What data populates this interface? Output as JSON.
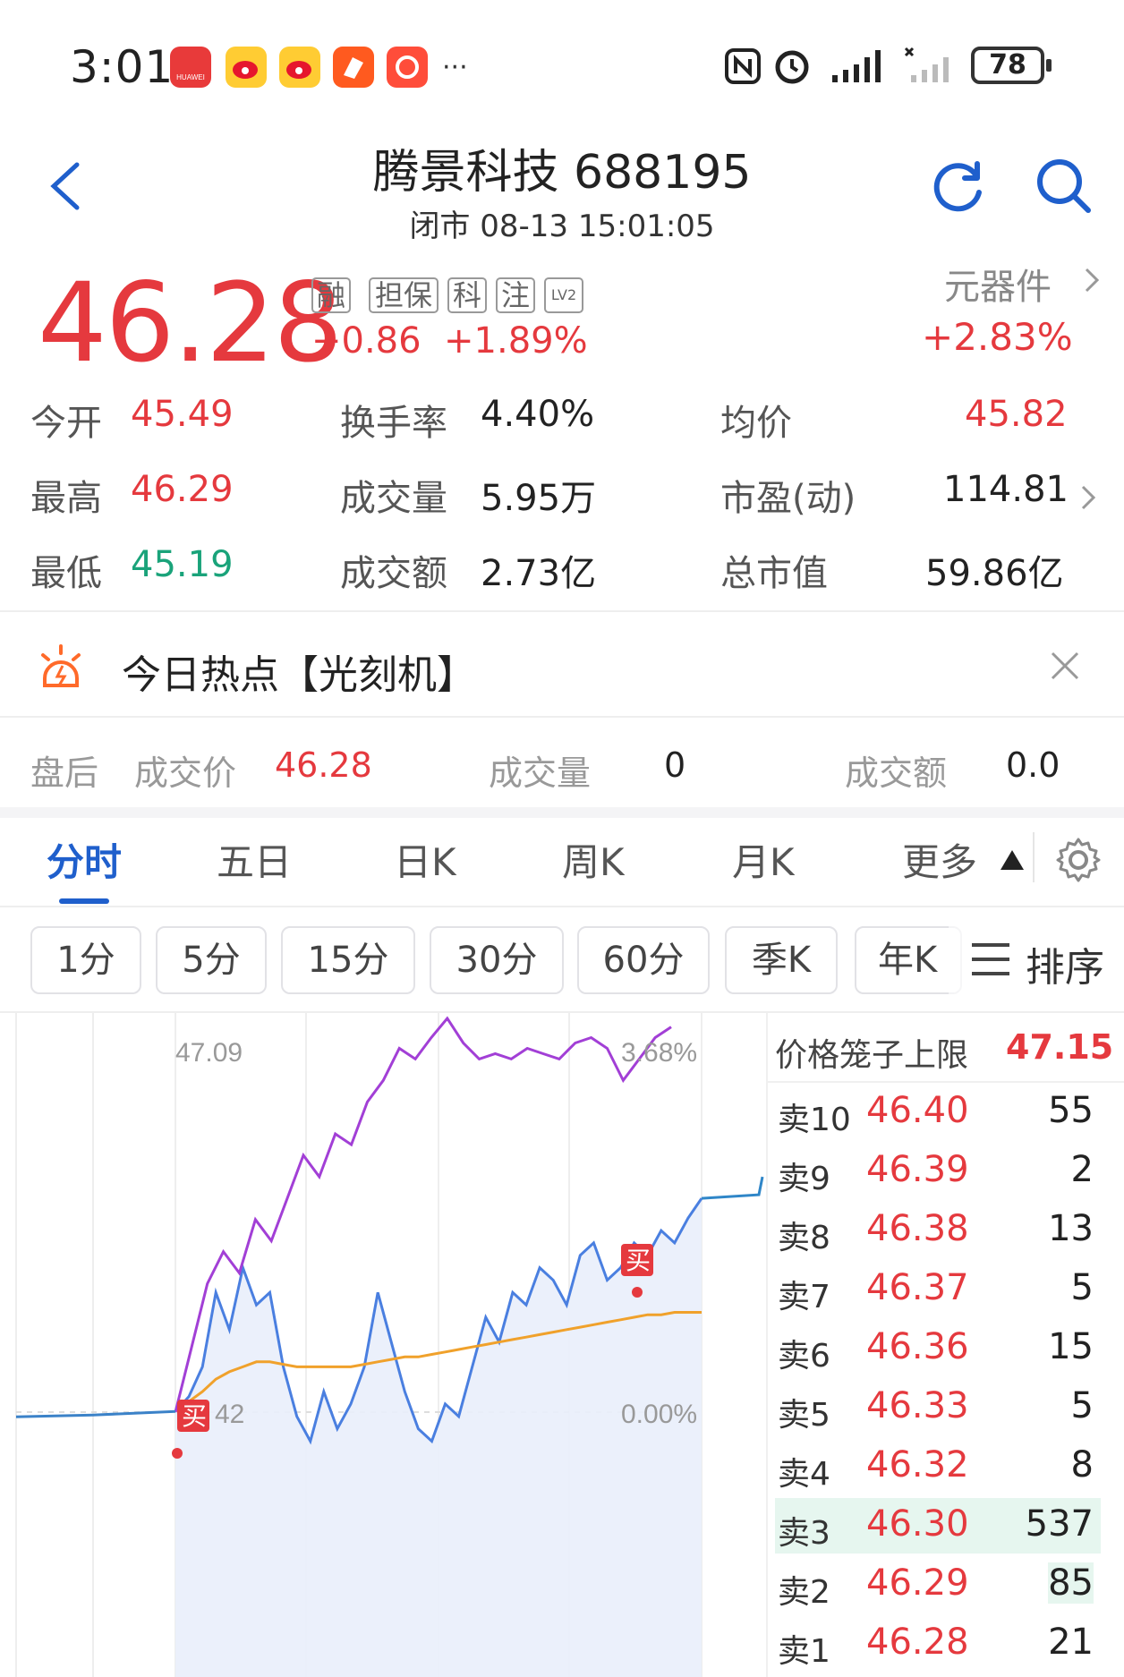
{
  "status_bar": {
    "time": "3:01",
    "battery": "78",
    "huawei_label": "HUAWEI"
  },
  "header": {
    "title": "腾景科技 688195",
    "subtitle": "闭市 08-13 15:01:05"
  },
  "quote": {
    "price": "46.28",
    "change": "+0.86",
    "change_pct": "+1.89%",
    "tags": [
      "融",
      "担保",
      "科",
      "注",
      "LV2"
    ],
    "sector": "元器件",
    "sector_pct": "+2.83%"
  },
  "stats": [
    {
      "label": "今开",
      "value": "45.49",
      "color": "red"
    },
    {
      "label": "换手率",
      "value": "4.40%"
    },
    {
      "label": "均价",
      "value": "45.82",
      "color": "red"
    },
    {
      "label": "最高",
      "value": "46.29",
      "color": "red"
    },
    {
      "label": "成交量",
      "value": "5.95万"
    },
    {
      "label": "市盈(动)",
      "value": "114.81"
    },
    {
      "label": "最低",
      "value": "45.19",
      "color": "green"
    },
    {
      "label": "成交额",
      "value": "2.73亿"
    },
    {
      "label": "总市值",
      "value": "59.86亿"
    }
  ],
  "hot": {
    "text": "今日热点【光刻机】"
  },
  "after_hours": {
    "label": "盘后",
    "price_label": "成交价",
    "price": "46.28",
    "volume_label": "成交量",
    "volume": "0",
    "amount_label": "成交额",
    "amount": "0.0"
  },
  "tabs": [
    "分时",
    "五日",
    "日K",
    "周K",
    "月K",
    "更多"
  ],
  "intervals": [
    "1分",
    "5分",
    "15分",
    "30分",
    "60分",
    "季K",
    "年K"
  ],
  "sort_label": "排序",
  "chart_data": {
    "type": "line",
    "top_price_label": "47.09",
    "top_pct_label": "3.68%",
    "mid_pct_label": "0.00%",
    "mid_price_label": "42",
    "buy_marker": "买",
    "series": [
      {
        "values": [
          45.42,
          45.48,
          45.6,
          45.9,
          45.75,
          46.0,
          45.85,
          45.9,
          45.6,
          45.4,
          45.3,
          45.5,
          45.35,
          45.45,
          45.6,
          45.9,
          45.7,
          45.5,
          45.35,
          45.3,
          45.45,
          45.4,
          45.6,
          45.8,
          45.7,
          45.9,
          45.85,
          46.0,
          45.95,
          45.85,
          46.05,
          46.1,
          45.95,
          46.0,
          46.1,
          46.05,
          46.15,
          46.1,
          46.2,
          46.28
        ]
      },
      {
        "values": [
          45.42,
          45.46,
          45.5,
          45.55,
          45.58,
          45.6,
          45.62,
          45.62,
          45.61,
          45.6,
          45.6,
          45.6,
          45.6,
          45.6,
          45.61,
          45.62,
          45.63,
          45.64,
          45.64,
          45.65,
          45.66,
          45.67,
          45.68,
          45.69,
          45.7,
          45.71,
          45.72,
          45.73,
          45.74,
          45.75,
          45.76,
          45.77,
          45.78,
          45.79,
          45.8,
          45.81,
          45.81,
          45.82,
          45.82,
          45.82
        ]
      },
      {
        "values": [
          0.0,
          0.6,
          1.2,
          1.5,
          1.3,
          1.8,
          1.6,
          2.0,
          2.4,
          2.2,
          2.6,
          2.5,
          2.9,
          3.1,
          3.4,
          3.3,
          3.5,
          3.68,
          3.45,
          3.3,
          3.35,
          3.3,
          3.4,
          3.35,
          3.3,
          3.45,
          3.5,
          3.4,
          3.1,
          3.3,
          3.5,
          3.6
        ]
      }
    ]
  },
  "order_book": {
    "header_label": "价格笼子上限",
    "header_value": "47.15",
    "rows": [
      {
        "label": "卖10",
        "price": "46.40",
        "vol": "55"
      },
      {
        "label": "卖9",
        "price": "46.39",
        "vol": "2"
      },
      {
        "label": "卖8",
        "price": "46.38",
        "vol": "13"
      },
      {
        "label": "卖7",
        "price": "46.37",
        "vol": "5"
      },
      {
        "label": "卖6",
        "price": "46.36",
        "vol": "15"
      },
      {
        "label": "卖5",
        "price": "46.33",
        "vol": "5"
      },
      {
        "label": "卖4",
        "price": "46.32",
        "vol": "8"
      },
      {
        "label": "卖3",
        "price": "46.30",
        "vol": "537"
      },
      {
        "label": "卖2",
        "price": "46.29",
        "vol": "85"
      },
      {
        "label": "卖1",
        "price": "46.28",
        "vol": "21"
      }
    ]
  }
}
